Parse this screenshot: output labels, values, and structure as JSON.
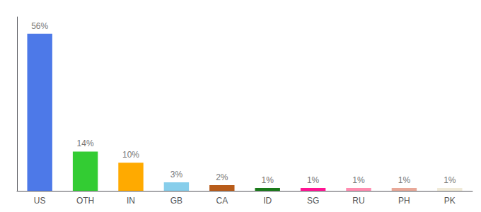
{
  "chart_data": {
    "type": "bar",
    "categories": [
      "US",
      "OTH",
      "IN",
      "GB",
      "CA",
      "ID",
      "SG",
      "RU",
      "PH",
      "PK"
    ],
    "values": [
      56,
      14,
      10,
      3,
      2,
      1,
      1,
      1,
      1,
      1
    ],
    "value_labels": [
      "56%",
      "14%",
      "10%",
      "3%",
      "2%",
      "1%",
      "1%",
      "1%",
      "1%",
      "1%"
    ],
    "colors": [
      "#4d79e8",
      "#33cc33",
      "#ffaa00",
      "#87ceeb",
      "#b85c1a",
      "#1a7a1a",
      "#ff1493",
      "#ff8cb0",
      "#e8a898",
      "#f0ead8"
    ],
    "ylim": [
      0,
      62
    ],
    "data_labels": true,
    "tick_labels": "x",
    "grid": false
  }
}
